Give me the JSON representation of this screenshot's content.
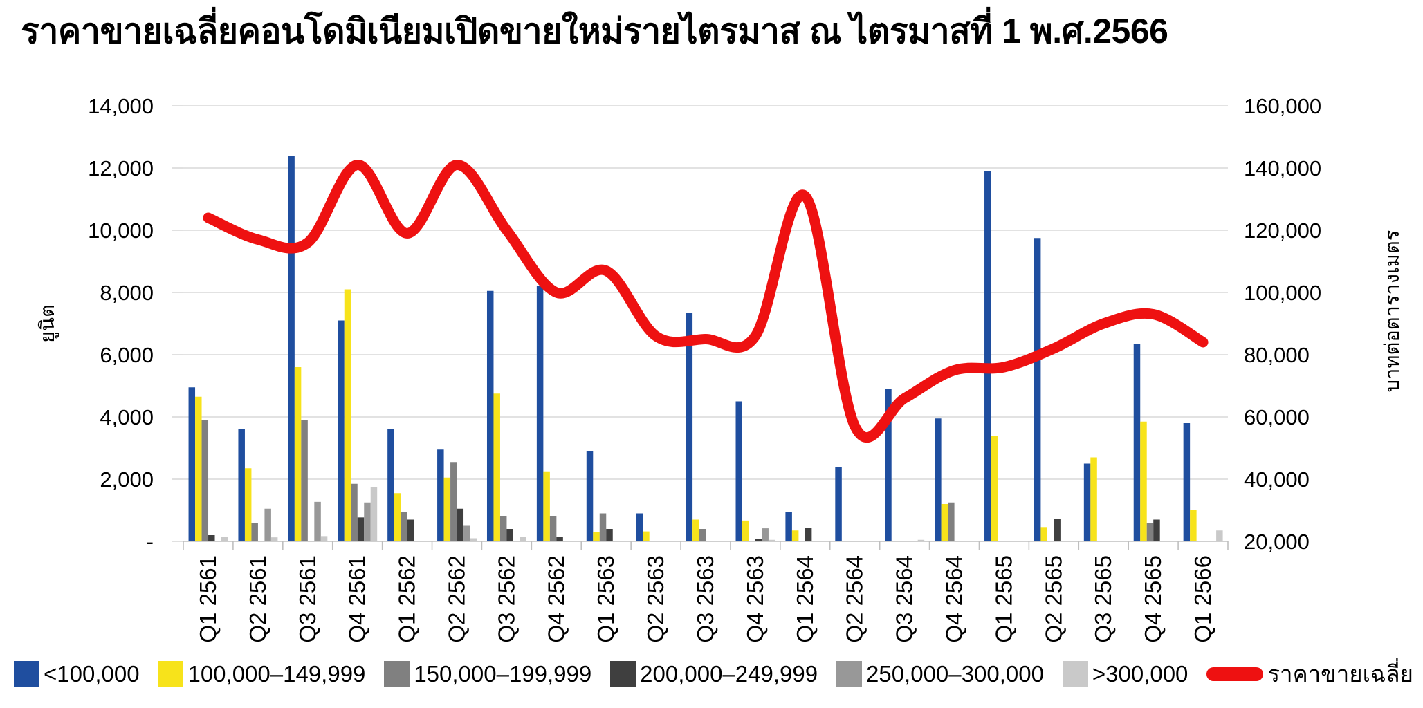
{
  "title": "ราคาขายเฉลี่ยคอนโดมิเนียมเปิดขายใหม่รายไตรมาส ณ ไตรมาสที่ 1 พ.ศ.2566",
  "colors": {
    "background": "#FFFFFF",
    "gridline": "#D9D9D9",
    "axis": "#BFBFBF",
    "text": "#000000",
    "avg_line": "#EE1111"
  },
  "chart_data": {
    "type": "bar+line combo",
    "categories": [
      "Q1 2561",
      "Q2 2561",
      "Q3 2561",
      "Q4 2561",
      "Q1 2562",
      "Q2 2562",
      "Q3 2562",
      "Q4 2562",
      "Q1 2563",
      "Q2 2563",
      "Q3 2563",
      "Q4 2563",
      "Q1 2564",
      "Q2 2564",
      "Q3 2564",
      "Q4 2564",
      "Q1 2565",
      "Q2 2565",
      "Q3 2565",
      "Q4 2565",
      "Q1 2566"
    ],
    "series": [
      {
        "name": "<100,000",
        "color": "#1F4E9F",
        "values": [
          4950,
          3600,
          12400,
          7100,
          3600,
          2950,
          8050,
          8200,
          2900,
          900,
          7350,
          4500,
          950,
          2400,
          4900,
          3950,
          11900,
          9750,
          2500,
          6350,
          3800
        ]
      },
      {
        "name": "100,000–149,999",
        "color": "#F7E31B",
        "values": [
          4650,
          2350,
          5600,
          8100,
          1550,
          2050,
          4750,
          2250,
          300,
          320,
          700,
          670,
          350,
          0,
          0,
          1200,
          3400,
          460,
          2700,
          3850,
          1000
        ]
      },
      {
        "name": "150,000–199,999",
        "color": "#808080",
        "values": [
          3900,
          600,
          3900,
          1850,
          950,
          2550,
          800,
          800,
          900,
          0,
          400,
          0,
          0,
          0,
          0,
          1250,
          0,
          0,
          0,
          600,
          0
        ]
      },
      {
        "name": "200,000–249,999",
        "color": "#3F3F3F",
        "values": [
          200,
          0,
          0,
          770,
          700,
          1050,
          400,
          150,
          400,
          0,
          0,
          80,
          440,
          0,
          0,
          0,
          0,
          720,
          0,
          700,
          0
        ]
      },
      {
        "name": "250,000–300,000",
        "color": "#989898",
        "values": [
          0,
          1050,
          1270,
          1250,
          0,
          500,
          0,
          0,
          0,
          0,
          0,
          420,
          0,
          0,
          0,
          0,
          0,
          0,
          0,
          0,
          0
        ]
      },
      {
        "name": ">300,000",
        "color": "#C9C9C9",
        "values": [
          150,
          130,
          170,
          1750,
          0,
          100,
          150,
          0,
          0,
          0,
          0,
          50,
          0,
          0,
          50,
          0,
          0,
          0,
          0,
          0,
          350
        ]
      }
    ],
    "line_series": {
      "name": "ราคาขายเฉลี่ย",
      "color": "#EE1111",
      "axis": "right",
      "values": [
        124000,
        117000,
        116000,
        141000,
        119000,
        141000,
        120000,
        100000,
        107000,
        86000,
        85000,
        86000,
        131000,
        57000,
        66000,
        75000,
        76000,
        82000,
        90000,
        93000,
        84000
      ]
    },
    "left_axis": {
      "title": "ยูนิต",
      "min": 0,
      "max": 14000,
      "step": 2000,
      "tick_labels": [
        "-",
        "2,000",
        "4,000",
        "6,000",
        "8,000",
        "10,000",
        "12,000",
        "14,000"
      ]
    },
    "right_axis": {
      "title": "บาทต่อตารางเมตร",
      "min": 20000,
      "max": 160000,
      "step": 20000,
      "tick_labels": [
        "20,000",
        "40,000",
        "60,000",
        "80,000",
        "100,000",
        "120,000",
        "140,000",
        "160,000"
      ]
    },
    "grid": true,
    "legend_position": "bottom"
  }
}
